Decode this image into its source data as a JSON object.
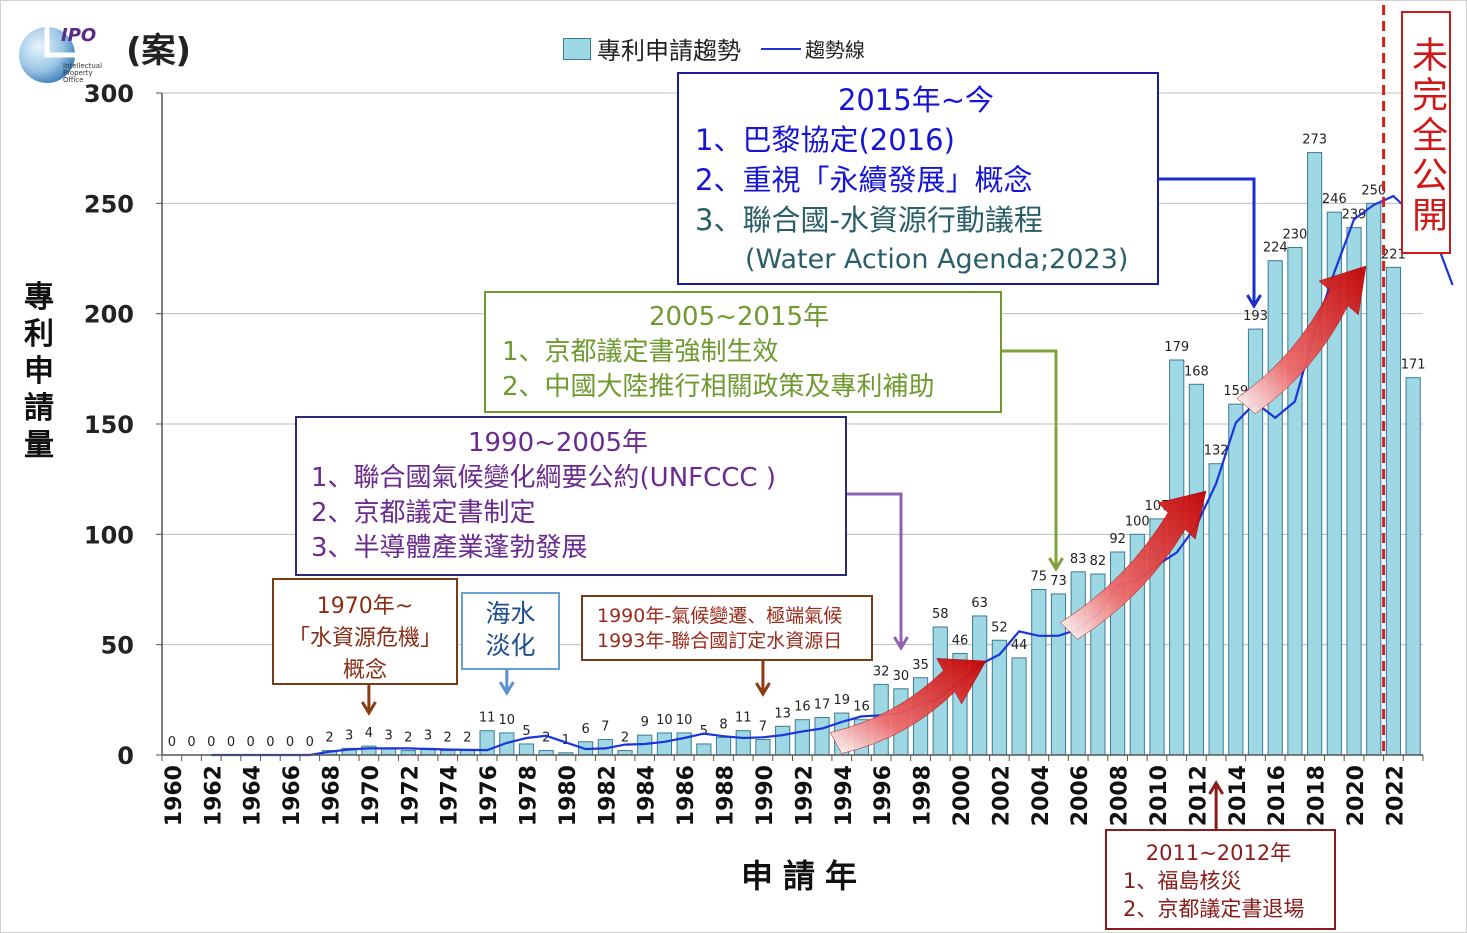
{
  "unit_label": "(案)",
  "legend": {
    "bar_label": "專利申請趨勢",
    "line_label": "趨勢線"
  },
  "logo": {
    "mark": "IPO",
    "caption": [
      "Intellectual",
      "Property",
      "Office"
    ]
  },
  "colors": {
    "bar_fill": "#9ed8e5",
    "bar_stroke": "#3b7b93",
    "trend_line": "#1a35d8",
    "cutoff_line": "#d42020",
    "arrow": "#cc0000"
  },
  "chart_data": {
    "type": "bar",
    "title": "",
    "xlabel": "申請年",
    "ylabel": "專利申請量",
    "ylim": [
      0,
      300
    ],
    "yticks": [
      0,
      50,
      100,
      150,
      200,
      250,
      300
    ],
    "grid": true,
    "categories": [
      1960,
      1961,
      1962,
      1963,
      1964,
      1965,
      1966,
      1967,
      1968,
      1969,
      1970,
      1971,
      1972,
      1973,
      1974,
      1975,
      1976,
      1977,
      1978,
      1979,
      1980,
      1981,
      1982,
      1983,
      1984,
      1985,
      1986,
      1987,
      1988,
      1989,
      1990,
      1991,
      1992,
      1993,
      1994,
      1995,
      1996,
      1997,
      1998,
      1999,
      2000,
      2001,
      2002,
      2003,
      2004,
      2005,
      2006,
      2007,
      2008,
      2009,
      2010,
      2011,
      2012,
      2013,
      2014,
      2015,
      2016,
      2017,
      2018,
      2019,
      2020,
      2021,
      2022,
      2023
    ],
    "xtick_labels": [
      "1960",
      "1962",
      "1964",
      "1966",
      "1968",
      "1970",
      "1972",
      "1974",
      "1976",
      "1978",
      "1980",
      "1982",
      "1984",
      "1986",
      "1988",
      "1990",
      "1992",
      "1994",
      "1996",
      "1998",
      "2000",
      "2002",
      "2004",
      "2006",
      "2008",
      "2010",
      "2012",
      "2014",
      "2016",
      "2018",
      "2020",
      "2022"
    ],
    "series": [
      {
        "name": "專利申請趨勢",
        "type": "bar",
        "values": [
          0,
          0,
          0,
          0,
          0,
          0,
          0,
          0,
          2,
          3,
          4,
          3,
          2,
          3,
          2,
          2,
          11,
          10,
          5,
          2,
          1,
          6,
          7,
          2,
          9,
          10,
          10,
          5,
          8,
          11,
          7,
          13,
          16,
          17,
          19,
          16,
          32,
          30,
          35,
          58,
          46,
          63,
          52,
          44,
          75,
          73,
          83,
          82,
          92,
          100,
          107,
          179,
          168,
          132,
          159,
          193,
          224,
          230,
          273,
          246,
          239,
          250,
          221,
          171
        ],
        "labels": [
          "0",
          "0",
          "0",
          "0",
          "0",
          "0",
          "0",
          "0",
          "2",
          "3",
          "4",
          "3",
          "2",
          "3",
          "2",
          "2",
          "11",
          "10",
          "5",
          "2",
          "1",
          "6",
          "7",
          "2",
          "9",
          "10",
          "10",
          "5",
          "8",
          "11",
          "7",
          "13",
          "16",
          "17",
          "19",
          "16",
          "32",
          "30",
          "35",
          "58",
          "46",
          "63",
          "52",
          "44",
          "75",
          "73",
          "83",
          "82",
          "92",
          "100",
          "107",
          "179",
          "168",
          "132",
          "159",
          "193",
          "224",
          "230",
          "273",
          "246",
          "239",
          "250",
          "221",
          "171"
        ]
      },
      {
        "name": "趨勢線",
        "type": "line",
        "x_start": 1962,
        "values": [
          0,
          0,
          0,
          0,
          0,
          0,
          1.5,
          2.5,
          3,
          3,
          3,
          2.7,
          2.5,
          2.3,
          2.2,
          5.5,
          7.7,
          8.7,
          5.7,
          2.7,
          3,
          4.7,
          5,
          6,
          7.7,
          9.7,
          8.5,
          7.7,
          8,
          9,
          10.7,
          12,
          15,
          17.5,
          18,
          19,
          22.8,
          26,
          33.3,
          41,
          45.5,
          56,
          54,
          54,
          57,
          63.5,
          76.7,
          79.3,
          86,
          91.7,
          104,
          123,
          150.6,
          159.7,
          152.8,
          160.2,
          192,
          218.7,
          242.7,
          249.3,
          253.3,
          245,
          236.7,
          213
        ]
      }
    ],
    "annotations": [
      {
        "title": "1970年~",
        "lines": [
          "「水資源危機」",
          "概念"
        ],
        "points_to": 1970
      },
      {
        "title": "海水",
        "lines": [
          "淡化"
        ],
        "points_to": 1977
      },
      {
        "title": "1990年-氣候變遷、極端氣候",
        "lines": [
          "1993年-聯合國訂定水資源日"
        ],
        "points_to": 1990
      },
      {
        "title": "1990~2005年",
        "lines": [
          "1、聯合國氣候變化綱要公約(UNFCCC )",
          "2、京都議定書制定",
          "3、半導體產業蓬勃發展"
        ],
        "points_to": 1997
      },
      {
        "title": "2005~2015年",
        "lines": [
          "1、京都議定書強制生效",
          "2、中國大陸推行相關政策及專利補助"
        ],
        "points_to": 2005
      },
      {
        "title": "2015年~今",
        "lines": [
          "1、巴黎協定(2016)",
          "2、重視「永續發展」概念",
          "3、聯合國-水資源行動議程",
          "(Water Action Agenda;2023)"
        ],
        "points_to": 2015
      },
      {
        "title": "2011~2012年",
        "lines": [
          "1、福島核災",
          "2、京都議定書退場"
        ],
        "points_to": 2013
      }
    ],
    "cutoff": {
      "label": "未完全公開",
      "after_year": 2021
    }
  }
}
